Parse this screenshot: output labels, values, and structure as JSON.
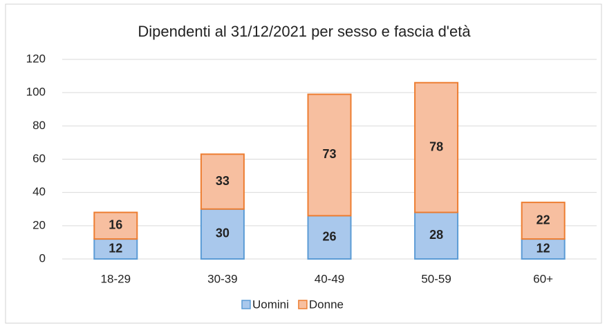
{
  "chart_data": {
    "type": "bar",
    "stacked": true,
    "title": "Dipendenti al 31/12/2021 per sesso e fascia d'età",
    "categories": [
      "18-29",
      "30-39",
      "40-49",
      "50-59",
      "60+"
    ],
    "series": [
      {
        "name": "Uomini",
        "color": "#a9c8ec",
        "stroke": "#5b9bd5",
        "values": [
          12,
          30,
          26,
          28,
          12
        ]
      },
      {
        "name": "Donne",
        "color": "#f7bfa0",
        "stroke": "#ed7d31",
        "values": [
          16,
          33,
          73,
          78,
          22
        ]
      }
    ],
    "ylim": [
      0,
      120
    ],
    "yticks": [
      0,
      20,
      40,
      60,
      80,
      100,
      120
    ],
    "grid": true,
    "legend": "bottom"
  }
}
